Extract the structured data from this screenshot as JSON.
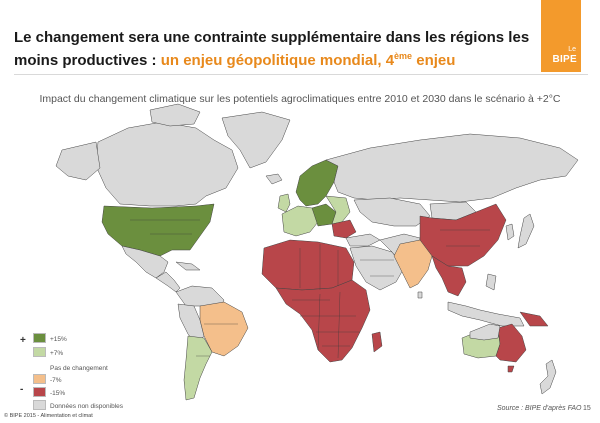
{
  "header": {
    "title_line1": "Le changement sera une contrainte supplémentaire dans les régions les",
    "title_line2_prefix": "moins productives : ",
    "title_line2_accent": "un enjeu géopolitique mondial, 4",
    "title_sup": "ème",
    "title_line2_end": " enjeu"
  },
  "logo": {
    "small": "Le",
    "name": "BIPE",
    "color": "#f39a2c"
  },
  "subtitle": "Impact du changement climatique sur les potentiels agroclimatiques entre 2010 et 2030 dans le scénario à +2°C",
  "legend": {
    "plus_sign": "+",
    "minus_sign": "-",
    "items": [
      {
        "label": "+15%",
        "color": "#6b8f3e"
      },
      {
        "label": "+7%",
        "color": "#c3d9a4"
      },
      {
        "label": "Pas de changement",
        "color": null
      },
      {
        "label": "-7%",
        "color": "#f4bf8b"
      },
      {
        "label": "-15%",
        "color": "#b8464a"
      },
      {
        "label": "Données non disponibles",
        "color": "#d9d9d9"
      }
    ]
  },
  "map_colors": {
    "dark_green": "#6b8f3e",
    "light_green": "#c3d9a4",
    "light_orange": "#f4bf8b",
    "dark_red": "#b8464a",
    "gray": "#d9d9d9",
    "border": "#444444"
  },
  "footer": {
    "copyright": "© BIPE 2015 - Alimentation et climat",
    "source": "Source : BIPE d'après FAO",
    "page": "15"
  }
}
